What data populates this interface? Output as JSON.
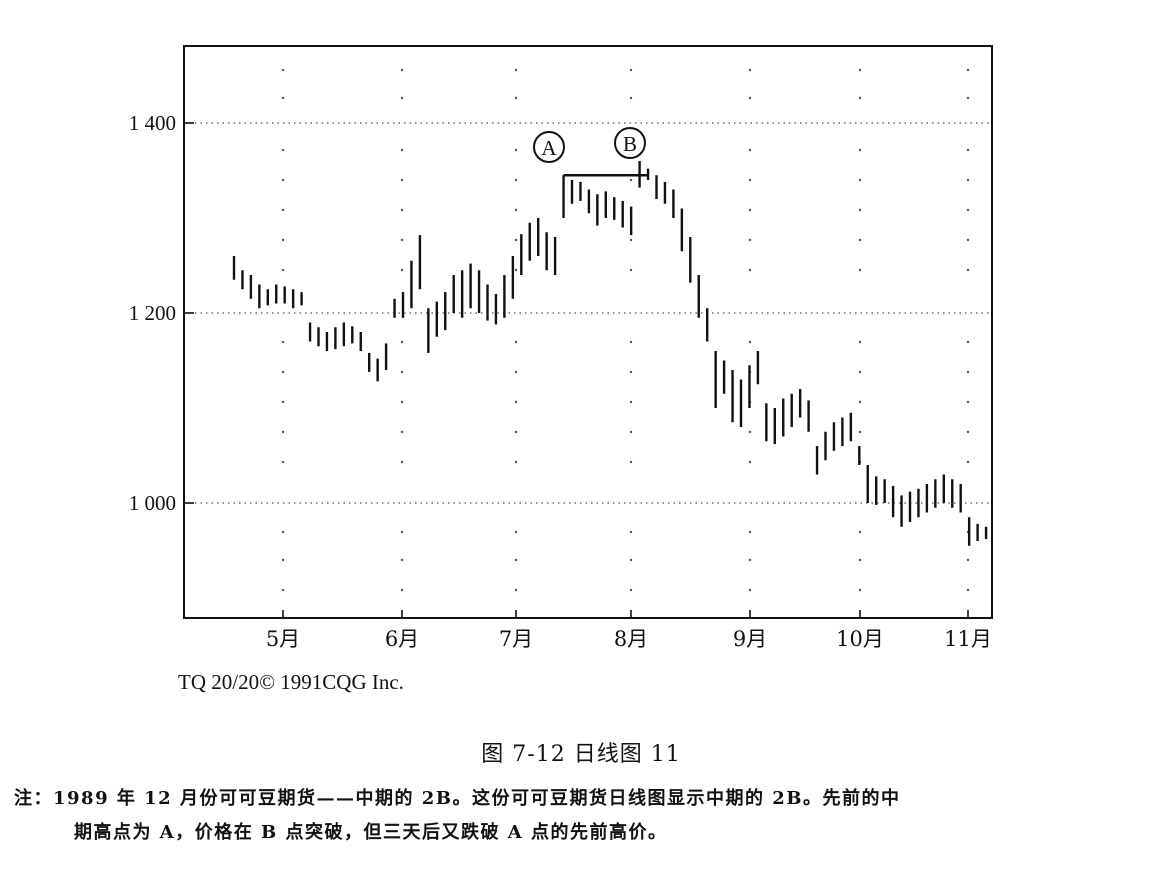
{
  "chart_data": {
    "type": "bar",
    "subtype": "ohlc",
    "xlabel": "",
    "ylabel": "",
    "x_tick_labels": [
      "5月",
      "6月",
      "7月",
      "8月",
      "9月",
      "10月",
      "11月"
    ],
    "y_tick_labels": [
      "1 400",
      "1 200",
      "1 000"
    ],
    "y_ticks": [
      1400,
      1200,
      1000
    ],
    "ylim": [
      880,
      1480
    ],
    "grid": "dotted",
    "annotations": [
      {
        "label": "A",
        "price": 1345,
        "bar_index": 39
      },
      {
        "label": "B",
        "price": 1362,
        "bar_index": 49
      }
    ],
    "breakout_level": 1345,
    "bars": [
      [
        1260,
        1235
      ],
      [
        1245,
        1225
      ],
      [
        1240,
        1215
      ],
      [
        1230,
        1205
      ],
      [
        1225,
        1208
      ],
      [
        1230,
        1210
      ],
      [
        1228,
        1210
      ],
      [
        1225,
        1205
      ],
      [
        1222,
        1208
      ],
      [
        1190,
        1170
      ],
      [
        1185,
        1165
      ],
      [
        1180,
        1160
      ],
      [
        1185,
        1162
      ],
      [
        1190,
        1165
      ],
      [
        1186,
        1168
      ],
      [
        1180,
        1160
      ],
      [
        1158,
        1138
      ],
      [
        1152,
        1128
      ],
      [
        1168,
        1140
      ],
      [
        1215,
        1195
      ],
      [
        1222,
        1195
      ],
      [
        1255,
        1205
      ],
      [
        1282,
        1225
      ],
      [
        1205,
        1158
      ],
      [
        1212,
        1175
      ],
      [
        1222,
        1182
      ],
      [
        1240,
        1200
      ],
      [
        1245,
        1195
      ],
      [
        1252,
        1205
      ],
      [
        1245,
        1200
      ],
      [
        1230,
        1192
      ],
      [
        1220,
        1188
      ],
      [
        1240,
        1195
      ],
      [
        1260,
        1215
      ],
      [
        1283,
        1240
      ],
      [
        1295,
        1255
      ],
      [
        1300,
        1260
      ],
      [
        1285,
        1245
      ],
      [
        1280,
        1240
      ],
      [
        1345,
        1300
      ],
      [
        1340,
        1315
      ],
      [
        1338,
        1318
      ],
      [
        1330,
        1305
      ],
      [
        1325,
        1292
      ],
      [
        1328,
        1300
      ],
      [
        1322,
        1298
      ],
      [
        1318,
        1290
      ],
      [
        1312,
        1282
      ],
      [
        1360,
        1332
      ],
      [
        1352,
        1340
      ],
      [
        1345,
        1320
      ],
      [
        1338,
        1315
      ],
      [
        1330,
        1300
      ],
      [
        1310,
        1265
      ],
      [
        1280,
        1232
      ],
      [
        1240,
        1195
      ],
      [
        1205,
        1170
      ],
      [
        1160,
        1100
      ],
      [
        1150,
        1115
      ],
      [
        1140,
        1085
      ],
      [
        1130,
        1080
      ],
      [
        1145,
        1100
      ],
      [
        1160,
        1125
      ],
      [
        1105,
        1065
      ],
      [
        1100,
        1062
      ],
      [
        1110,
        1070
      ],
      [
        1115,
        1080
      ],
      [
        1120,
        1090
      ],
      [
        1108,
        1075
      ],
      [
        1060,
        1030
      ],
      [
        1075,
        1045
      ],
      [
        1085,
        1055
      ],
      [
        1090,
        1060
      ],
      [
        1095,
        1065
      ],
      [
        1060,
        1040
      ],
      [
        1040,
        1000
      ],
      [
        1028,
        998
      ],
      [
        1025,
        1000
      ],
      [
        1018,
        985
      ],
      [
        1008,
        975
      ],
      [
        1012,
        980
      ],
      [
        1015,
        985
      ],
      [
        1020,
        990
      ],
      [
        1025,
        995
      ],
      [
        1030,
        1000
      ],
      [
        1025,
        995
      ],
      [
        1020,
        990
      ],
      [
        985,
        955
      ],
      [
        978,
        960
      ],
      [
        975,
        962
      ]
    ]
  },
  "copyright": "TQ 20/20© 1991CQG Inc.",
  "caption": "图 7-12    日线图 11",
  "note_line1": "注：1989 年 12 月份可可豆期货——中期的 2B。这份可可豆期货日线图显示中期的 2B。先前的中",
  "note_line2": "期高点为 A，价格在 B 点突破，但三天后又跌破 A 点的先前高价。",
  "colors": {
    "ink": "#111111",
    "grid": "#555555",
    "background": "#ffffff"
  }
}
